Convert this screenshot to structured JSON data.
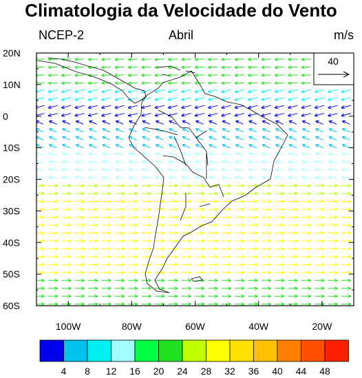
{
  "title": "Climatologia da Velocidade do Vento",
  "subtitle": {
    "left": "NCEP-2",
    "center": "Abril",
    "right": "m/s"
  },
  "reference_vector": {
    "value": "40"
  },
  "map": {
    "lon_range": [
      -110,
      -10
    ],
    "lat_range": [
      -60,
      20
    ],
    "lat_labels": [
      "20N",
      "10N",
      "0",
      "10S",
      "20S",
      "30S",
      "40S",
      "50S",
      "60S"
    ],
    "lon_labels": [
      "100W",
      "80W",
      "60W",
      "40W",
      "20W"
    ]
  },
  "colorbar": {
    "labels": [
      "4",
      "8",
      "12",
      "16",
      "20",
      "24",
      "28",
      "32",
      "36",
      "40",
      "44",
      "48"
    ],
    "colors": [
      "#0000ee",
      "#00c0ee",
      "#00f0f0",
      "#a0ffff",
      "#00ff40",
      "#20e020",
      "#c0ff00",
      "#ffff00",
      "#ffe000",
      "#ffc000",
      "#ff8000",
      "#ff5000",
      "#ff2000"
    ]
  }
}
